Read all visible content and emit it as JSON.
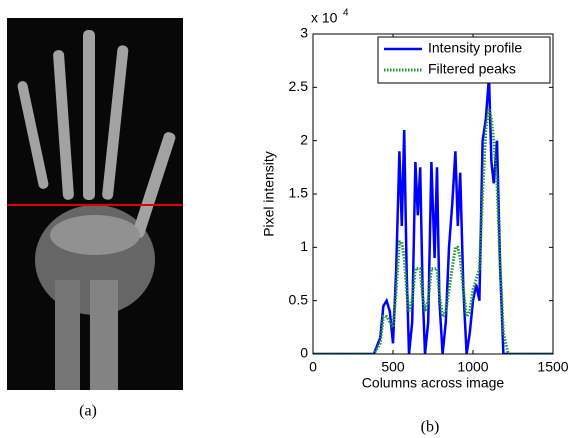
{
  "panel_a": {
    "caption": "(a)"
  },
  "chart_data": {
    "type": "line",
    "caption": "(b)",
    "xlabel": "Columns across image",
    "ylabel": "Pixel intensity",
    "y_multiplier": "x 10",
    "y_multiplier_exponent": "4",
    "xlim": [
      0,
      1500
    ],
    "xticks": [
      0,
      500,
      1000,
      1500
    ],
    "ylim": [
      0,
      30000
    ],
    "yticks": [
      0,
      {
        "value": 5000,
        "label": "0.5"
      },
      {
        "value": 10000,
        "label": "1"
      },
      {
        "value": 15000,
        "label": "1.5"
      },
      {
        "value": 20000,
        "label": "2"
      },
      {
        "value": 25000,
        "label": "2.5"
      },
      {
        "value": 30000,
        "label": "3"
      }
    ],
    "legend": "top-right",
    "x": [
      0,
      380,
      420,
      440,
      460,
      480,
      500,
      520,
      540,
      555,
      570,
      585,
      600,
      620,
      640,
      655,
      670,
      685,
      700,
      720,
      740,
      760,
      775,
      790,
      810,
      830,
      850,
      870,
      890,
      905,
      920,
      940,
      960,
      980,
      1000,
      1020,
      1040,
      1060,
      1080,
      1100,
      1115,
      1130,
      1150,
      1170,
      1190,
      1220,
      1500
    ],
    "series": [
      {
        "name": "Intensity profile",
        "color": "#0000ff",
        "style": "solid",
        "values": [
          0,
          0,
          1500,
          4500,
          5000,
          4000,
          1000,
          8000,
          19000,
          12000,
          21000,
          8000,
          0,
          3000,
          18000,
          13000,
          17500,
          6000,
          0,
          3000,
          18000,
          9000,
          17500,
          5000,
          0,
          3000,
          10000,
          14000,
          19000,
          12000,
          17000,
          6000,
          0,
          2000,
          5000,
          6500,
          5000,
          20000,
          22000,
          26000,
          18000,
          16000,
          20000,
          8000,
          0,
          0,
          0
        ]
      },
      {
        "name": "Filtered peaks",
        "color": "#1a9a2a",
        "style": "dotted",
        "values": [
          0,
          0,
          1000,
          3500,
          3500,
          3000,
          2500,
          6000,
          10500,
          10500,
          9000,
          6000,
          4000,
          5000,
          8000,
          8000,
          8000,
          5500,
          4000,
          5000,
          8000,
          8000,
          8000,
          5500,
          3500,
          4000,
          6000,
          8000,
          10000,
          10000,
          9000,
          6000,
          3500,
          4000,
          6000,
          7000,
          8000,
          15000,
          21000,
          23000,
          22000,
          20000,
          16000,
          8000,
          2000,
          0,
          0
        ]
      }
    ]
  }
}
